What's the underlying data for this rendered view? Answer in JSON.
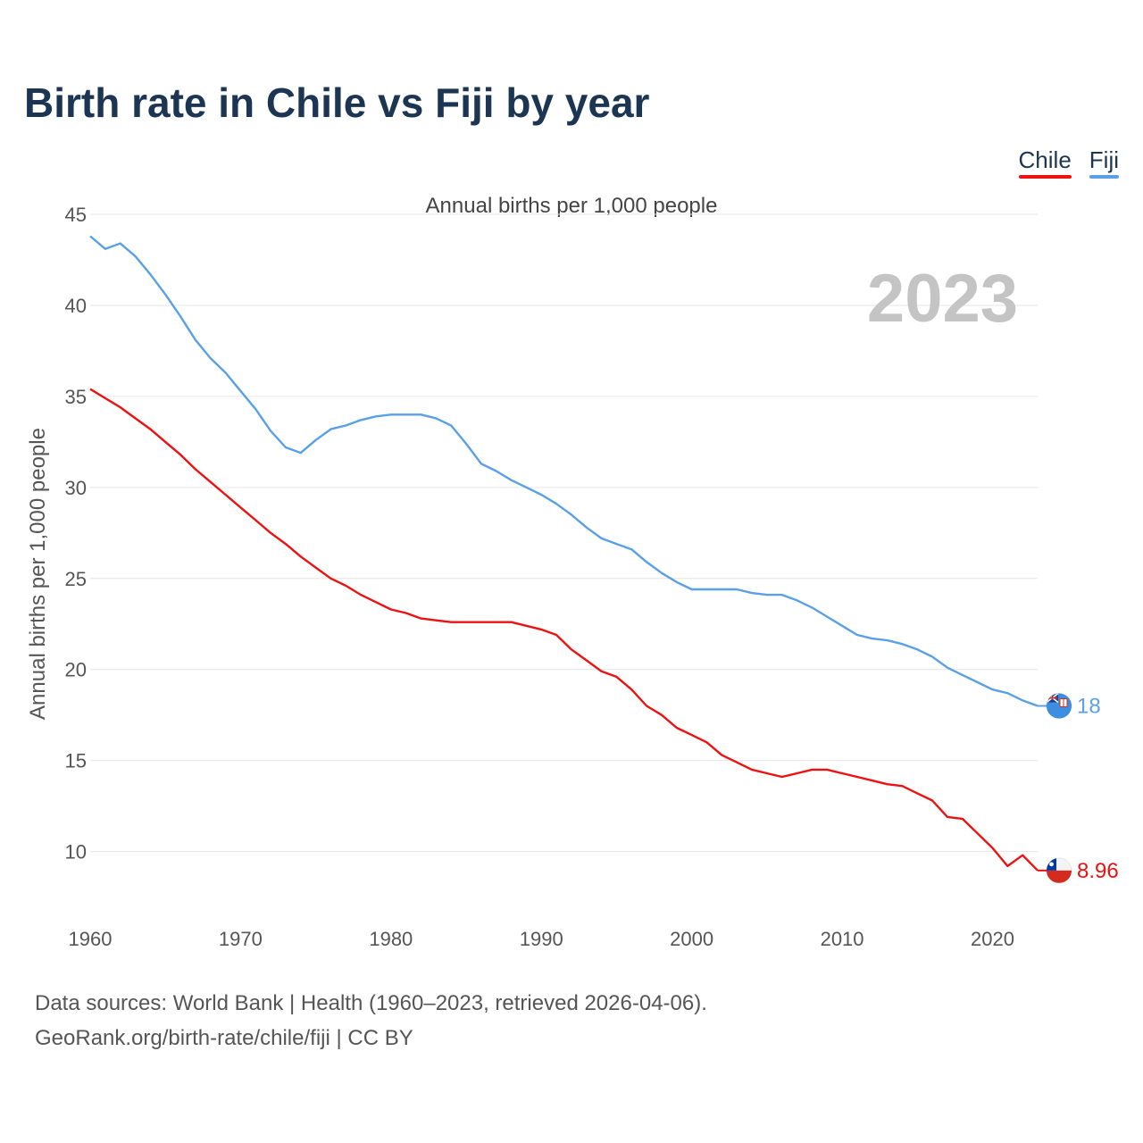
{
  "header": {
    "title": "Birth rate in Chile vs Fiji by year",
    "subtitle": "Annual births per 1,000 people"
  },
  "legend": [
    {
      "label": "Chile",
      "color": "#ee1111"
    },
    {
      "label": "Fiji",
      "color": "#5aa0e6"
    }
  ],
  "footer": {
    "line1": "Data sources: World Bank | Health (1960–2023, retrieved 2026-04-06).",
    "line2": "GeoRank.org/birth-rate/chile/fiji | CC BY"
  },
  "chart_data": {
    "type": "line",
    "title": "Birth rate in Chile vs Fiji by year",
    "subtitle": "Annual births per 1,000 people",
    "xlabel": "",
    "ylabel": "Annual births per 1,000 people",
    "year_watermark": "2023",
    "xlim": [
      1960,
      2023
    ],
    "ylim": [
      6.5,
      45
    ],
    "xticks": [
      1960,
      1970,
      1980,
      1990,
      2000,
      2010,
      2020
    ],
    "yticks": [
      10,
      15,
      20,
      25,
      30,
      35,
      40,
      45
    ],
    "grid": true,
    "legend_position": "top-right",
    "x": [
      1960,
      1961,
      1962,
      1963,
      1964,
      1965,
      1966,
      1967,
      1968,
      1969,
      1970,
      1971,
      1972,
      1973,
      1974,
      1975,
      1976,
      1977,
      1978,
      1979,
      1980,
      1981,
      1982,
      1983,
      1984,
      1985,
      1986,
      1987,
      1988,
      1989,
      1990,
      1991,
      1992,
      1993,
      1994,
      1995,
      1996,
      1997,
      1998,
      1999,
      2000,
      2001,
      2002,
      2003,
      2004,
      2005,
      2006,
      2007,
      2008,
      2009,
      2010,
      2011,
      2012,
      2013,
      2014,
      2015,
      2016,
      2017,
      2018,
      2019,
      2020,
      2021,
      2022,
      2023
    ],
    "series": [
      {
        "name": "Chile",
        "color": "#ee1111",
        "end_label": "8.96",
        "flag_icon": "chile-flag-icon",
        "values": [
          35.4,
          34.9,
          34.4,
          33.8,
          33.2,
          32.5,
          31.8,
          31.0,
          30.3,
          29.6,
          28.9,
          28.2,
          27.5,
          26.9,
          26.2,
          25.6,
          25.0,
          24.6,
          24.1,
          23.7,
          23.3,
          23.1,
          22.8,
          22.7,
          22.6,
          22.6,
          22.6,
          22.6,
          22.6,
          22.4,
          22.2,
          21.9,
          21.1,
          20.5,
          19.9,
          19.6,
          18.9,
          18.0,
          17.5,
          16.8,
          16.4,
          16.0,
          15.3,
          14.9,
          14.5,
          14.3,
          14.1,
          14.3,
          14.5,
          14.5,
          14.3,
          14.1,
          13.9,
          13.7,
          13.6,
          13.2,
          12.8,
          11.9,
          11.8,
          11.0,
          10.2,
          9.2,
          9.8,
          8.96
        ]
      },
      {
        "name": "Fiji",
        "color": "#5aa0e6",
        "end_label": "18",
        "flag_icon": "fiji-flag-icon",
        "values": [
          43.8,
          43.1,
          43.4,
          42.7,
          41.7,
          40.6,
          39.4,
          38.1,
          37.1,
          36.3,
          35.3,
          34.3,
          33.1,
          32.2,
          31.9,
          32.6,
          33.2,
          33.4,
          33.7,
          33.9,
          34.0,
          34.0,
          34.0,
          33.8,
          33.4,
          32.4,
          31.3,
          30.9,
          30.4,
          30.0,
          29.6,
          29.1,
          28.5,
          27.8,
          27.2,
          26.9,
          26.6,
          25.9,
          25.3,
          24.8,
          24.4,
          24.4,
          24.4,
          24.4,
          24.2,
          24.1,
          24.1,
          23.8,
          23.4,
          22.9,
          22.4,
          21.9,
          21.7,
          21.6,
          21.4,
          21.1,
          20.7,
          20.1,
          19.7,
          19.3,
          18.9,
          18.7,
          18.3,
          18.0
        ]
      }
    ]
  }
}
